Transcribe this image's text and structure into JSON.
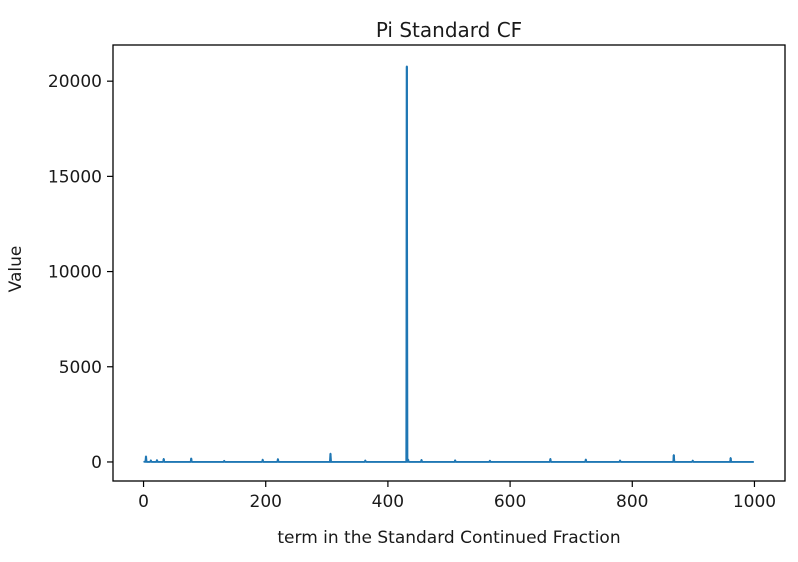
{
  "chart_data": {
    "type": "line",
    "title": "Pi Standard CF",
    "xlabel": "term in the Standard Continued Fraction",
    "ylabel": "Value",
    "xlim": [
      -50,
      1050
    ],
    "ylim": [
      -1000,
      21900
    ],
    "xticks": [
      0,
      200,
      400,
      600,
      800,
      1000
    ],
    "yticks": [
      0,
      5000,
      10000,
      15000,
      20000
    ],
    "xtick_labels": [
      "0",
      "200",
      "400",
      "600",
      "800",
      "1000"
    ],
    "ytick_labels": [
      "0",
      "5000",
      "10000",
      "15000",
      "20000"
    ],
    "grid": false,
    "series": [
      {
        "color": "#1f77b4",
        "baseline": 1,
        "n_terms": 1000,
        "spikes": [
          {
            "x": 0,
            "y": 3
          },
          {
            "x": 1,
            "y": 7
          },
          {
            "x": 2,
            "y": 15
          },
          {
            "x": 3,
            "y": 1
          },
          {
            "x": 4,
            "y": 292
          },
          {
            "x": 12,
            "y": 84
          },
          {
            "x": 22,
            "y": 99
          },
          {
            "x": 33,
            "y": 161
          },
          {
            "x": 78,
            "y": 184
          },
          {
            "x": 132,
            "y": 60
          },
          {
            "x": 195,
            "y": 120
          },
          {
            "x": 220,
            "y": 150
          },
          {
            "x": 306,
            "y": 436
          },
          {
            "x": 363,
            "y": 80
          },
          {
            "x": 431,
            "y": 20776
          },
          {
            "x": 433,
            "y": 130
          },
          {
            "x": 455,
            "y": 110
          },
          {
            "x": 510,
            "y": 90
          },
          {
            "x": 567,
            "y": 70
          },
          {
            "x": 666,
            "y": 160
          },
          {
            "x": 724,
            "y": 130
          },
          {
            "x": 780,
            "y": 80
          },
          {
            "x": 868,
            "y": 364
          },
          {
            "x": 899,
            "y": 75
          },
          {
            "x": 961,
            "y": 210
          }
        ]
      }
    ]
  }
}
